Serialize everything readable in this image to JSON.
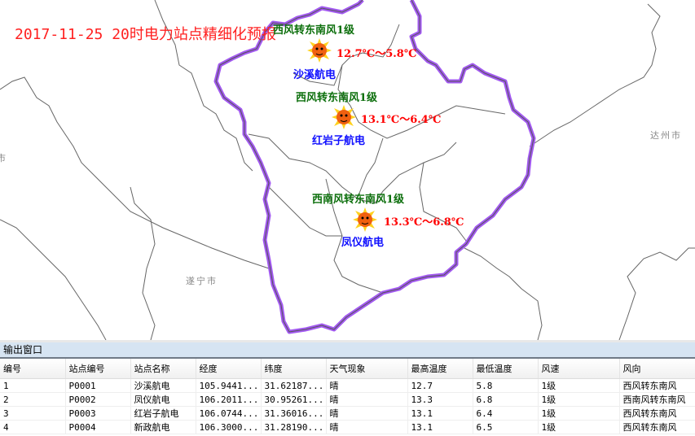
{
  "map": {
    "title": "2017-11-25 20时电力站点精细化预报",
    "boundary_color": "#a259f0",
    "stations": [
      {
        "wind": "西风转东南风1级",
        "temp": "12.7℃～5.8℃",
        "name": "沙溪航电",
        "weather_icon": "sun-icon"
      },
      {
        "wind": "西风转东南风1级",
        "temp": "13.1℃～6.4℃",
        "name": "红岩子航电",
        "weather_icon": "sun-icon"
      },
      {
        "wind": "西南风转东南风1级",
        "temp": "13.3℃～6.8℃",
        "name": "凤仪航电",
        "weather_icon": "sun-icon"
      }
    ],
    "cities": [
      "达州市",
      "遂宁市",
      "市"
    ]
  },
  "panel": {
    "title": "输出窗口",
    "columns": [
      "编号",
      "站点编号",
      "站点名称",
      "经度",
      "纬度",
      "天气现象",
      "最高温度",
      "最低温度",
      "风速",
      "风向"
    ],
    "rows": [
      [
        "1",
        "P0001",
        "沙溪航电",
        "105.9441...",
        "31.62187...",
        "晴",
        "12.7",
        "5.8",
        "1级",
        "西风转东南风"
      ],
      [
        "2",
        "P0002",
        "凤仪航电",
        "106.2011...",
        "30.95261...",
        "晴",
        "13.3",
        "6.8",
        "1级",
        "西南风转东南风"
      ],
      [
        "3",
        "P0003",
        "红岩子航电",
        "106.0744...",
        "31.36016...",
        "晴",
        "13.1",
        "6.4",
        "1级",
        "西风转东南风"
      ],
      [
        "4",
        "P0004",
        "新政航电",
        "106.3000...",
        "31.28190...",
        "晴",
        "13.1",
        "6.5",
        "1级",
        "西风转东南风"
      ]
    ]
  }
}
